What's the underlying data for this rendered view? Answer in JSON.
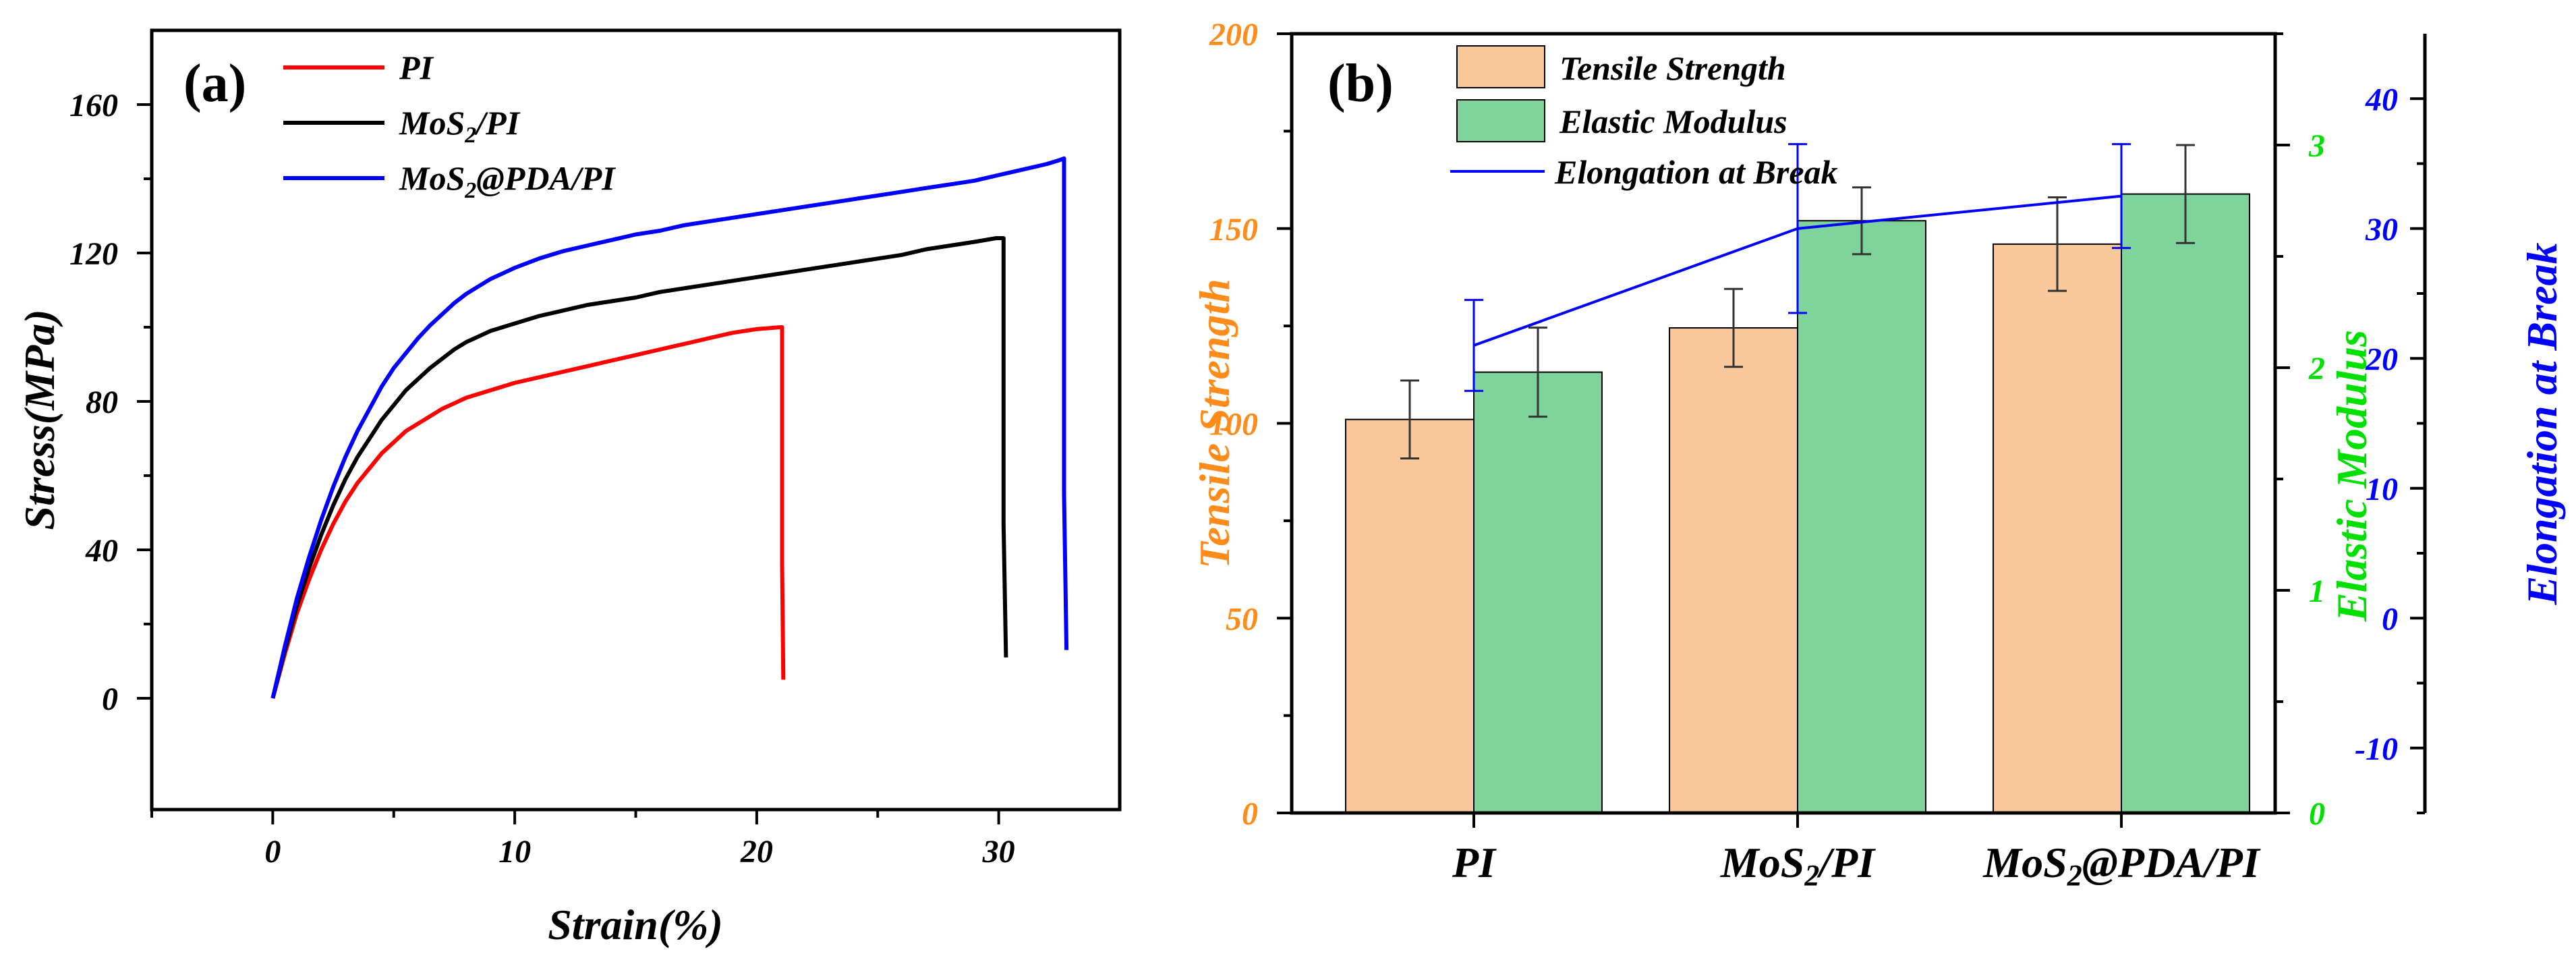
{
  "chart_data": [
    {
      "panel_label": "(a)",
      "type": "line",
      "xlabel": "Strain(%)",
      "ylabel": "Stress(MPa)",
      "xlim": [
        -5,
        35
      ],
      "ylim": [
        -30,
        180
      ],
      "xticks": [
        0,
        10,
        20,
        30
      ],
      "yticks": [
        0,
        40,
        80,
        120,
        160
      ],
      "series": [
        {
          "name": "PI",
          "legend": {
            "base": "PI"
          },
          "color": "#ff0000",
          "x": [
            0,
            0.5,
            1,
            1.5,
            2,
            2.5,
            3,
            3.5,
            4,
            4.5,
            5,
            5.5,
            6,
            6.5,
            7,
            7.5,
            8,
            8.5,
            9,
            9.5,
            10,
            11,
            12,
            13,
            14,
            15,
            16,
            17,
            18,
            19,
            20,
            21.0,
            21.05,
            21.05,
            21.1
          ],
          "y": [
            0,
            12,
            23,
            32,
            40,
            47,
            53,
            58,
            62,
            66,
            69,
            72,
            74,
            76,
            78,
            79.5,
            81,
            82,
            83,
            84,
            85,
            86.5,
            88,
            89.5,
            91,
            92.5,
            94,
            95.5,
            97,
            98.5,
            99.5,
            100,
            100,
            36,
            5
          ]
        },
        {
          "name": "MoS2/PI",
          "legend": {
            "base": "MoS",
            "sub": "2",
            "tail": "/PI"
          },
          "color": "#000000",
          "x": [
            0,
            0.5,
            1,
            1.5,
            2,
            2.5,
            3,
            3.5,
            4,
            4.5,
            5,
            5.5,
            6,
            6.5,
            7,
            7.5,
            8,
            8.5,
            9,
            9.5,
            10,
            11,
            12,
            13,
            14,
            15,
            16,
            17,
            18,
            19,
            20,
            21,
            22,
            23,
            24,
            25,
            26,
            27,
            28,
            29,
            29.9,
            30.1,
            30.2,
            30.2,
            30.3
          ],
          "y": [
            0,
            13,
            25,
            35,
            44,
            52,
            59,
            65,
            70,
            75,
            79,
            83,
            86,
            89,
            91.5,
            94,
            96,
            97.5,
            99,
            100,
            101,
            103,
            104.5,
            106,
            107,
            108,
            109.5,
            110.5,
            111.5,
            112.5,
            113.5,
            114.5,
            115.5,
            116.5,
            117.5,
            118.5,
            119.5,
            121,
            122,
            123,
            124,
            124,
            124,
            47,
            11
          ]
        },
        {
          "name": "MoS2@PDA/PI",
          "legend": {
            "base": "MoS",
            "sub": "2",
            "tail": "@PDA/PI"
          },
          "color": "#0000ff",
          "x": [
            0,
            0.5,
            1,
            1.5,
            2,
            2.5,
            3,
            3.5,
            4,
            4.5,
            5,
            5.5,
            6,
            6.5,
            7,
            7.5,
            8,
            8.5,
            9,
            9.5,
            10,
            11,
            12,
            13,
            14,
            15,
            16,
            17,
            18,
            19,
            20,
            21,
            22,
            23,
            24,
            25,
            26,
            27,
            28,
            29,
            30,
            31,
            32,
            32.5,
            32.7,
            32.7,
            32.8
          ],
          "y": [
            0,
            14,
            27,
            38,
            48,
            57,
            65,
            72,
            78,
            84,
            89,
            93,
            97,
            100.5,
            103.5,
            106.5,
            109,
            111,
            113,
            114.5,
            116,
            118.5,
            120.5,
            122,
            123.5,
            125,
            126,
            127.5,
            128.5,
            129.5,
            130.5,
            131.5,
            132.5,
            133.5,
            134.5,
            135.5,
            136.5,
            137.5,
            138.5,
            139.5,
            141,
            142.5,
            144,
            145,
            145.5,
            55,
            13
          ]
        }
      ]
    },
    {
      "panel_label": "(b)",
      "type": "bar",
      "categories": [
        {
          "base": "PI"
        },
        {
          "base": "MoS",
          "sub": "2",
          "tail": "/PI"
        },
        {
          "base": "MoS",
          "sub": "2",
          "tail": "@PDA/PI"
        }
      ],
      "series": [
        {
          "name": "Tensile Strength",
          "axis": "left",
          "color": "#f9c89b",
          "label_color": "#ff8c1a",
          "values": [
            101,
            124.5,
            146
          ],
          "errors": [
            10,
            10,
            12
          ]
        },
        {
          "name": "Elastic Modulus",
          "axis": "right1",
          "color": "#7ed49b",
          "label_color": "#00e000",
          "values": [
            1.98,
            2.66,
            2.78
          ],
          "errors": [
            0.2,
            0.15,
            0.22
          ]
        },
        {
          "name": "Elongation at Break",
          "type": "line",
          "axis": "right2",
          "color": "#0000ff",
          "label_color": "#0000ff",
          "values": [
            21,
            30,
            32.5
          ],
          "errors": [
            3.5,
            6.5,
            4
          ]
        }
      ],
      "axes": {
        "left": {
          "label": "Tensile Strength",
          "lim": [
            0,
            200
          ],
          "ticks": [
            0,
            50,
            100,
            150,
            200
          ]
        },
        "right1": {
          "label": "Elastic Modulus",
          "lim": [
            0,
            3.5
          ],
          "ticks": [
            0,
            1,
            2,
            3
          ]
        },
        "right2": {
          "label": "Elongation at Break",
          "lim": [
            -15,
            45
          ],
          "ticks": [
            -10,
            0,
            10,
            20,
            30,
            40
          ]
        }
      }
    }
  ]
}
